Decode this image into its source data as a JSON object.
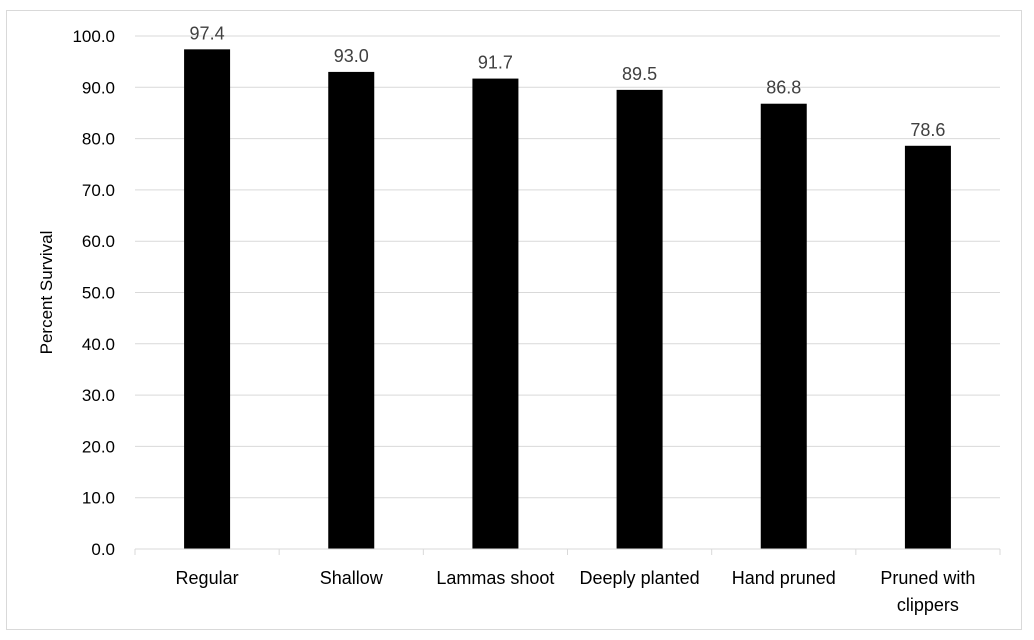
{
  "chart_data": {
    "type": "bar",
    "title": "",
    "xlabel": "",
    "ylabel": "Percent Survival",
    "categories": [
      [
        "Regular"
      ],
      [
        "Shallow"
      ],
      [
        "Lammas shoot"
      ],
      [
        "Deeply planted"
      ],
      [
        "Hand pruned"
      ],
      [
        "Pruned with",
        "clippers"
      ]
    ],
    "values": [
      97.4,
      93.0,
      91.7,
      89.5,
      86.8,
      78.6
    ],
    "value_labels": [
      "97.4",
      "93.0",
      "91.7",
      "89.5",
      "86.8",
      "78.6"
    ],
    "ylim": [
      0,
      100
    ],
    "yticks": [
      "0.0",
      "10.0",
      "20.0",
      "30.0",
      "40.0",
      "50.0",
      "60.0",
      "70.0",
      "80.0",
      "90.0",
      "100.0"
    ],
    "grid": true,
    "legend": "none",
    "colors": {
      "bar": "#000000",
      "grid": "#d9d9d9",
      "value_label": "#404040"
    }
  }
}
